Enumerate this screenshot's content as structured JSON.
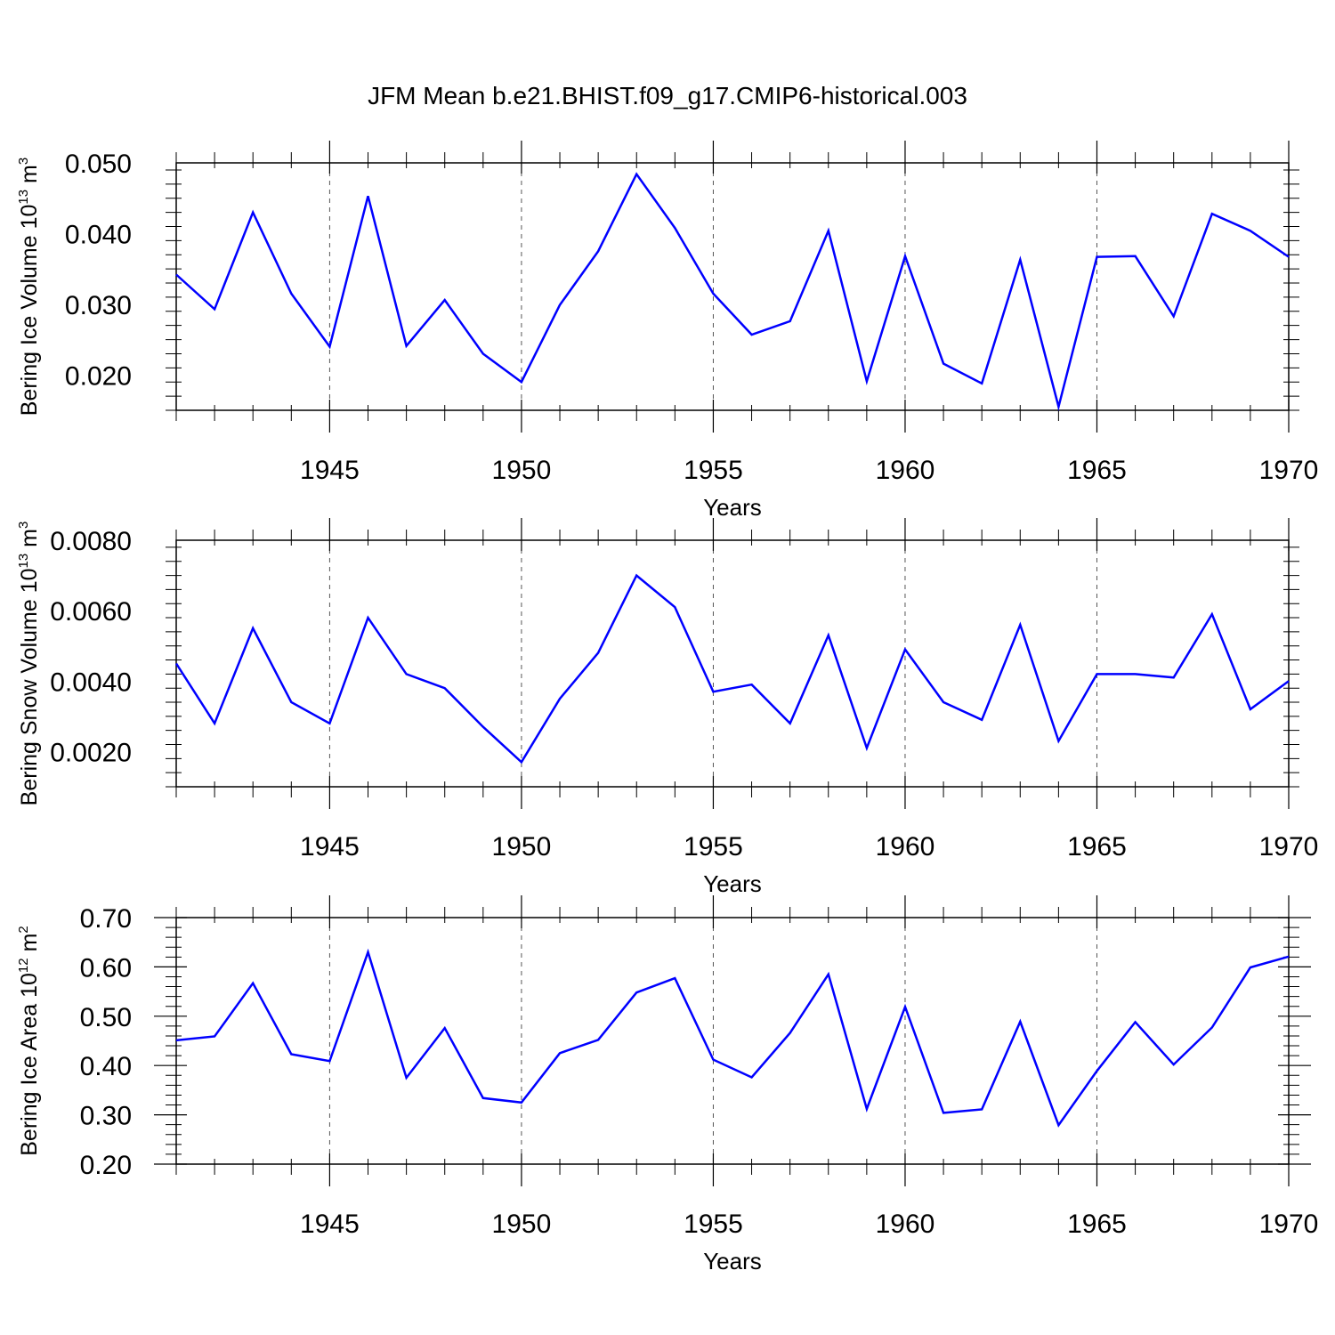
{
  "figure_title": "JFM Mean b.e21.BHIST.f09_g17.CMIP6-historical.003",
  "colors": {
    "line": "#0000ff",
    "axis": "#000000",
    "grid": "#555555"
  },
  "chart_data": [
    {
      "type": "line",
      "ylabel": {
        "text": "Bering Ice Volume 10",
        "sup": "13",
        "unit": " m",
        "unit_sup": "3"
      },
      "xlabel": "Years",
      "xlim": [
        1941,
        1970
      ],
      "ylim": [
        0.015,
        0.05
      ],
      "yticks": [
        0.02,
        0.03,
        0.04,
        0.05
      ],
      "ytick_labels": [
        "0.020",
        "0.030",
        "0.040",
        "0.050"
      ],
      "xticks": [
        1945,
        1950,
        1955,
        1960,
        1965,
        1970
      ],
      "xtick_labels": [
        "1945",
        "1950",
        "1955",
        "1960",
        "1965",
        "1970"
      ],
      "grid_x": [
        1945,
        1950,
        1955,
        1960,
        1965
      ],
      "x": [
        1941,
        1942,
        1943,
        1944,
        1945,
        1946,
        1947,
        1948,
        1949,
        1950,
        1951,
        1952,
        1953,
        1954,
        1955,
        1956,
        1957,
        1958,
        1959,
        1960,
        1961,
        1962,
        1963,
        1964,
        1965,
        1966,
        1967,
        1968,
        1969,
        1970
      ],
      "series": [
        {
          "name": "Bering Ice Volume",
          "values": [
            0.0342,
            0.0293,
            0.043,
            0.0315,
            0.024,
            0.0453,
            0.0241,
            0.0306,
            0.023,
            0.019,
            0.0299,
            0.0375,
            0.0484,
            0.0408,
            0.0315,
            0.0257,
            0.0276,
            0.0404,
            0.0191,
            0.0368,
            0.0216,
            0.0188,
            0.0363,
            0.0155,
            0.0367,
            0.0368,
            0.0283,
            0.0428,
            0.0404,
            0.0367
          ]
        }
      ]
    },
    {
      "type": "line",
      "ylabel": {
        "text": "Bering Snow Volume 10",
        "sup": "13",
        "unit": " m",
        "unit_sup": "3"
      },
      "xlabel": "Years",
      "xlim": [
        1941,
        1970
      ],
      "ylim": [
        0.001,
        0.008
      ],
      "yticks": [
        0.002,
        0.004,
        0.006,
        0.008
      ],
      "ytick_labels": [
        "0.0020",
        "0.0040",
        "0.0060",
        "0.0080"
      ],
      "xticks": [
        1945,
        1950,
        1955,
        1960,
        1965,
        1970
      ],
      "xtick_labels": [
        "1945",
        "1950",
        "1955",
        "1960",
        "1965",
        "1970"
      ],
      "grid_x": [
        1945,
        1950,
        1955,
        1960,
        1965
      ],
      "x": [
        1941,
        1942,
        1943,
        1944,
        1945,
        1946,
        1947,
        1948,
        1949,
        1950,
        1951,
        1952,
        1953,
        1954,
        1955,
        1956,
        1957,
        1958,
        1959,
        1960,
        1961,
        1962,
        1963,
        1964,
        1965,
        1966,
        1967,
        1968,
        1969,
        1970
      ],
      "series": [
        {
          "name": "Bering Snow Volume",
          "values": [
            0.0045,
            0.0028,
            0.0055,
            0.0034,
            0.0028,
            0.0058,
            0.0042,
            0.0038,
            0.0027,
            0.0017,
            0.0035,
            0.0048,
            0.007,
            0.0061,
            0.0037,
            0.0039,
            0.0028,
            0.0053,
            0.0021,
            0.0049,
            0.0034,
            0.0029,
            0.0056,
            0.0023,
            0.0042,
            0.0042,
            0.0041,
            0.0059,
            0.0032,
            0.004
          ]
        }
      ]
    },
    {
      "type": "line",
      "ylabel": {
        "text": "Bering Ice Area 10",
        "sup": "12",
        "unit": " m",
        "unit_sup": "2"
      },
      "xlabel": "Years",
      "xlim": [
        1941,
        1970
      ],
      "ylim": [
        0.2,
        0.7
      ],
      "yticks": [
        0.2,
        0.3,
        0.4,
        0.5,
        0.6,
        0.7
      ],
      "ytick_labels": [
        "0.20",
        "0.30",
        "0.40",
        "0.50",
        "0.60",
        "0.70"
      ],
      "xticks": [
        1945,
        1950,
        1955,
        1960,
        1965,
        1970
      ],
      "xtick_labels": [
        "1945",
        "1950",
        "1955",
        "1960",
        "1965",
        "1970"
      ],
      "grid_x": [
        1945,
        1950,
        1955,
        1960,
        1965
      ],
      "x": [
        1941,
        1942,
        1943,
        1944,
        1945,
        1946,
        1947,
        1948,
        1949,
        1950,
        1951,
        1952,
        1953,
        1954,
        1955,
        1956,
        1957,
        1958,
        1959,
        1960,
        1961,
        1962,
        1963,
        1964,
        1965,
        1966,
        1967,
        1968,
        1969,
        1970
      ],
      "series": [
        {
          "name": "Bering Ice Area",
          "values": [
            0.451,
            0.459,
            0.567,
            0.423,
            0.409,
            0.63,
            0.375,
            0.476,
            0.334,
            0.325,
            0.425,
            0.452,
            0.548,
            0.577,
            0.412,
            0.376,
            0.466,
            0.585,
            0.312,
            0.519,
            0.304,
            0.311,
            0.489,
            0.279,
            0.389,
            0.488,
            0.402,
            0.477,
            0.599,
            0.621
          ]
        }
      ]
    }
  ]
}
